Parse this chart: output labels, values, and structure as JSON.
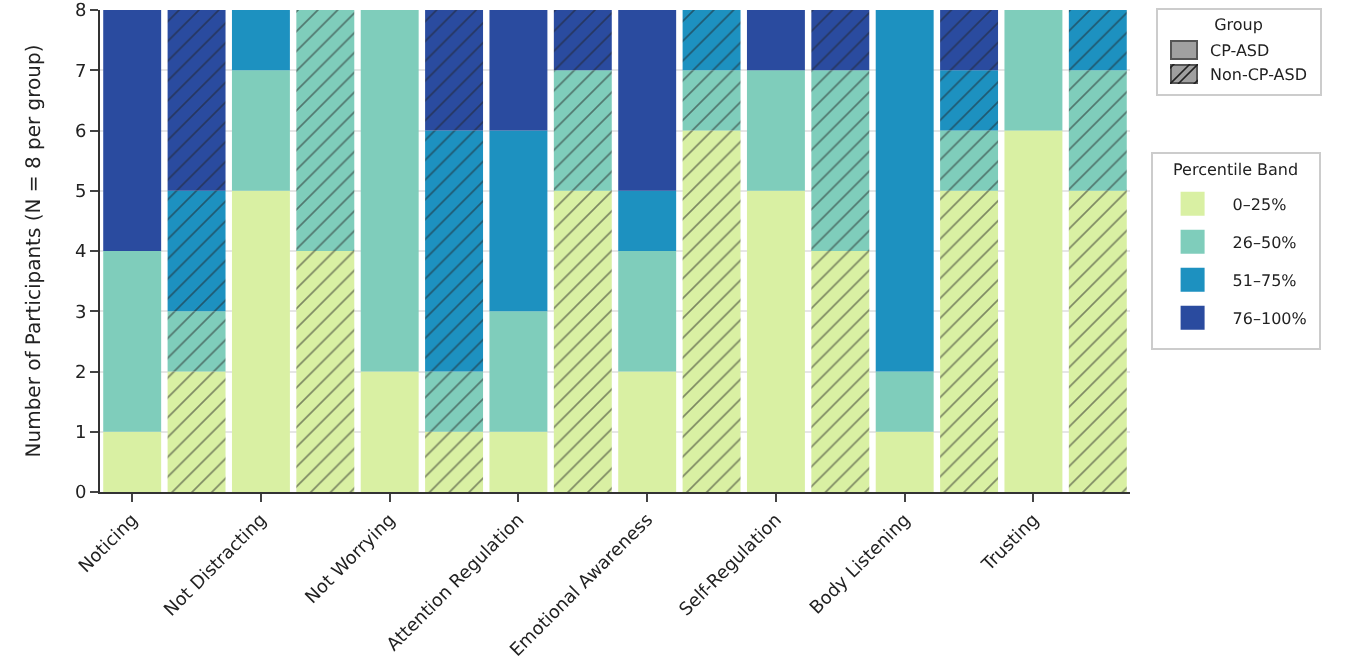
{
  "chart_data": {
    "type": "bar",
    "stacked": true,
    "categories": [
      "Noticing",
      null,
      "Not Distracting",
      null,
      "Not Worrying",
      null,
      "Attention Regulation",
      null,
      "Emotional Awareness",
      null,
      "Self-Regulation",
      null,
      "Body Listening",
      null,
      "Trusting",
      null
    ],
    "ylabel": "Number of Participants (N = 8 per group)",
    "legend_title": "Percentile Band",
    "annotations": [
      "Group",
      "CP-ASD",
      "Non-CP-ASD"
    ],
    "series": [
      {
        "name": "0–25%",
        "color": "#d9f0a3",
        "values": [
          1,
          2,
          5,
          4,
          2,
          1,
          1,
          5,
          2,
          6,
          5,
          4,
          1,
          5,
          6,
          5
        ]
      },
      {
        "name": "26–50%",
        "color": "#7fcdbb",
        "values": [
          3,
          1,
          2,
          4,
          6,
          1,
          2,
          2,
          2,
          1,
          2,
          3,
          1,
          1,
          2,
          2
        ]
      },
      {
        "name": "51–75%",
        "color": "#1d91c0",
        "values": [
          0,
          2,
          1,
          0,
          0,
          4,
          3,
          0,
          1,
          1,
          0,
          0,
          6,
          1,
          0,
          1
        ]
      },
      {
        "name": "76–100%",
        "color": "#2a4b9f",
        "values": [
          4,
          3,
          0,
          0,
          0,
          2,
          2,
          1,
          3,
          0,
          1,
          1,
          0,
          1,
          0,
          0
        ]
      }
    ],
    "ylim": [
      0,
      8
    ],
    "yticks": [
      0,
      1,
      2,
      3,
      4,
      5,
      6,
      7,
      8
    ],
    "grid": "y",
    "legend": "right"
  }
}
